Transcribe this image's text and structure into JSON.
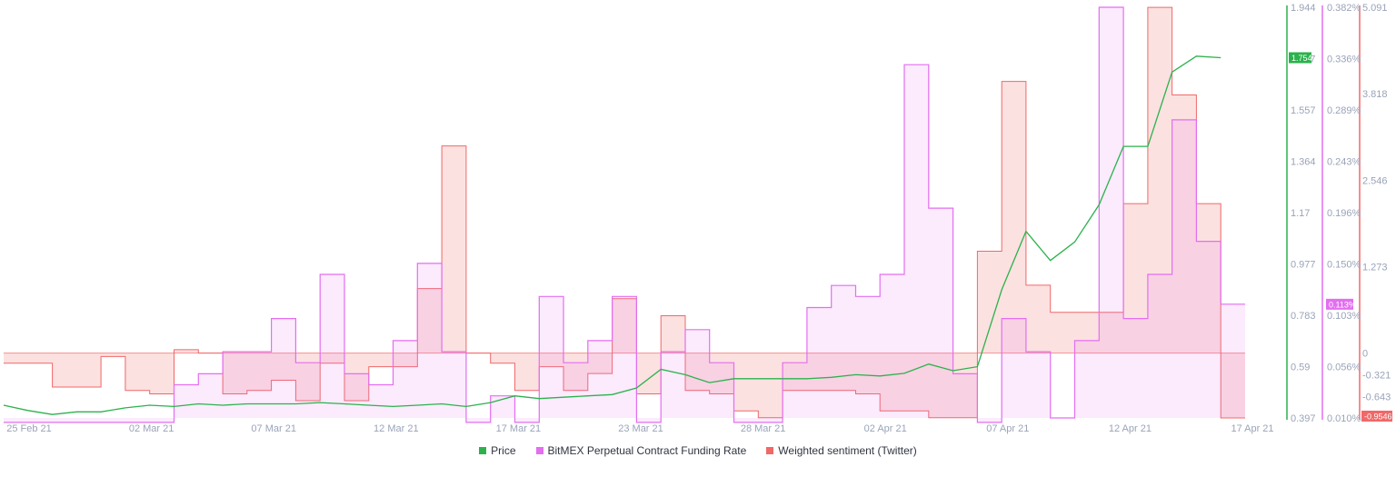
{
  "chart_data": {
    "type": "line",
    "x_dates": [
      "25 Feb 21",
      "02 Mar 21",
      "07 Mar 21",
      "12 Mar 21",
      "17 Mar 21",
      "23 Mar 21",
      "28 Mar 21",
      "02 Apr 21",
      "07 Apr 21",
      "12 Apr 21",
      "17 Apr 21"
    ],
    "xlim": [
      "2021-02-24",
      "2021-04-16"
    ],
    "series": [
      {
        "name": "Price",
        "color": "#2bb24c",
        "axis": "price",
        "x": [
          "2021-02-24",
          "2021-02-25",
          "2021-02-26",
          "2021-02-27",
          "2021-02-28",
          "2021-03-01",
          "2021-03-02",
          "2021-03-03",
          "2021-03-04",
          "2021-03-05",
          "2021-03-06",
          "2021-03-07",
          "2021-03-08",
          "2021-03-09",
          "2021-03-10",
          "2021-03-11",
          "2021-03-12",
          "2021-03-13",
          "2021-03-14",
          "2021-03-15",
          "2021-03-16",
          "2021-03-17",
          "2021-03-18",
          "2021-03-19",
          "2021-03-20",
          "2021-03-21",
          "2021-03-22",
          "2021-03-23",
          "2021-03-24",
          "2021-03-25",
          "2021-03-26",
          "2021-03-27",
          "2021-03-28",
          "2021-03-29",
          "2021-03-30",
          "2021-03-31",
          "2021-04-01",
          "2021-04-02",
          "2021-04-03",
          "2021-04-04",
          "2021-04-05",
          "2021-04-06",
          "2021-04-07",
          "2021-04-08",
          "2021-04-09",
          "2021-04-10",
          "2021-04-11",
          "2021-04-12",
          "2021-04-13",
          "2021-04-14",
          "2021-04-15"
        ],
        "y": [
          0.445,
          0.425,
          0.41,
          0.42,
          0.42,
          0.435,
          0.445,
          0.44,
          0.45,
          0.445,
          0.45,
          0.45,
          0.45,
          0.455,
          0.45,
          0.445,
          0.44,
          0.445,
          0.45,
          0.44,
          0.455,
          0.48,
          0.47,
          0.475,
          0.48,
          0.485,
          0.51,
          0.58,
          0.56,
          0.53,
          0.545,
          0.545,
          0.545,
          0.545,
          0.55,
          0.56,
          0.555,
          0.565,
          0.6,
          0.575,
          0.59,
          0.88,
          1.1,
          0.99,
          1.06,
          1.2,
          1.42,
          1.42,
          1.7,
          1.76,
          1.754
        ]
      },
      {
        "name": "BitMEX Perpetual Contract Funding Rate",
        "color": "#e36ef0",
        "axis": "funding",
        "x": [
          "2021-02-24",
          "2021-02-26",
          "2021-02-28",
          "2021-03-01",
          "2021-03-02",
          "2021-03-03",
          "2021-03-04",
          "2021-03-05",
          "2021-03-06",
          "2021-03-07",
          "2021-03-08",
          "2021-03-09",
          "2021-03-10",
          "2021-03-11",
          "2021-03-12",
          "2021-03-13",
          "2021-03-14",
          "2021-03-15",
          "2021-03-16",
          "2021-03-17",
          "2021-03-18",
          "2021-03-19",
          "2021-03-20",
          "2021-03-21",
          "2021-03-22",
          "2021-03-23",
          "2021-03-24",
          "2021-03-25",
          "2021-03-26",
          "2021-03-27",
          "2021-03-28",
          "2021-03-29",
          "2021-03-30",
          "2021-03-31",
          "2021-04-01",
          "2021-04-02",
          "2021-04-03",
          "2021-04-04",
          "2021-04-05",
          "2021-04-06",
          "2021-04-07",
          "2021-04-08",
          "2021-04-09",
          "2021-04-10",
          "2021-04-11",
          "2021-04-12",
          "2021-04-13",
          "2021-04-14",
          "2021-04-15"
        ],
        "y": [
          0.006,
          0.006,
          0.006,
          0.006,
          0.006,
          0.04,
          0.05,
          0.07,
          0.07,
          0.1,
          0.06,
          0.14,
          0.05,
          0.04,
          0.08,
          0.15,
          0.07,
          0.006,
          0.03,
          0.006,
          0.12,
          0.06,
          0.08,
          0.12,
          0.006,
          0.07,
          0.09,
          0.06,
          0.006,
          0.006,
          0.06,
          0.11,
          0.13,
          0.12,
          0.14,
          0.33,
          0.2,
          0.05,
          0.006,
          0.1,
          0.07,
          0.01,
          0.08,
          0.382,
          0.1,
          0.14,
          0.28,
          0.17,
          0.113
        ]
      },
      {
        "name": "Weighted sentiment (Twitter)",
        "color": "#f06868",
        "axis": "sentiment",
        "x": [
          "2021-02-24",
          "2021-02-26",
          "2021-02-28",
          "2021-03-01",
          "2021-03-02",
          "2021-03-03",
          "2021-03-04",
          "2021-03-05",
          "2021-03-06",
          "2021-03-07",
          "2021-03-08",
          "2021-03-09",
          "2021-03-10",
          "2021-03-11",
          "2021-03-12",
          "2021-03-13",
          "2021-03-14",
          "2021-03-15",
          "2021-03-16",
          "2021-03-17",
          "2021-03-18",
          "2021-03-19",
          "2021-03-20",
          "2021-03-21",
          "2021-03-22",
          "2021-03-23",
          "2021-03-24",
          "2021-03-25",
          "2021-03-26",
          "2021-03-27",
          "2021-03-28",
          "2021-03-29",
          "2021-03-30",
          "2021-03-31",
          "2021-04-01",
          "2021-04-02",
          "2021-04-03",
          "2021-04-04",
          "2021-04-05",
          "2021-04-06",
          "2021-04-07",
          "2021-04-08",
          "2021-04-09",
          "2021-04-10",
          "2021-04-11",
          "2021-04-12",
          "2021-04-13",
          "2021-04-14",
          "2021-04-15"
        ],
        "y": [
          -0.15,
          -0.5,
          -0.05,
          -0.55,
          -0.6,
          0.05,
          0.0,
          -0.6,
          -0.55,
          -0.4,
          -0.7,
          -0.15,
          -0.7,
          -0.2,
          -0.2,
          0.95,
          3.05,
          0.0,
          -0.15,
          -0.55,
          -0.2,
          -0.55,
          -0.3,
          0.8,
          -0.6,
          0.55,
          -0.55,
          -0.6,
          -0.85,
          -0.95,
          -0.55,
          -0.55,
          -0.55,
          -0.6,
          -0.85,
          -0.85,
          -0.95,
          -0.95,
          1.5,
          4.0,
          1.0,
          0.6,
          0.6,
          0.6,
          2.2,
          5.09,
          3.8,
          2.2,
          -0.9546
        ]
      }
    ],
    "axes": {
      "price": {
        "ticks": [
          "1.944",
          "1.757",
          "1.557",
          "1.364",
          "1.17",
          "0.977",
          "0.783",
          "0.59",
          "0.397"
        ],
        "ylim": [
          0.397,
          1.944
        ],
        "current": "1.754",
        "color": "#2bb24c"
      },
      "funding": {
        "ticks": [
          "0.382%",
          "0.336%",
          "0.289%",
          "0.243%",
          "0.196%",
          "0.150%",
          "0.103%",
          "0.056%",
          "0.010%"
        ],
        "ylim": [
          0.01,
          0.382
        ],
        "current": "0.113%",
        "color": "#e36ef0"
      },
      "sentiment": {
        "ticks": [
          "5.091",
          "3.818",
          "2.546",
          "1.273",
          "0",
          "-0.321",
          "-0.643"
        ],
        "tick_values": [
          5.091,
          3.818,
          2.546,
          1.273,
          0,
          -0.321,
          -0.643
        ],
        "ylim": [
          -0.9546,
          5.091
        ],
        "current": "-0.9546",
        "color": "#f06868"
      }
    },
    "grid": false,
    "legend": "bottom-center"
  }
}
